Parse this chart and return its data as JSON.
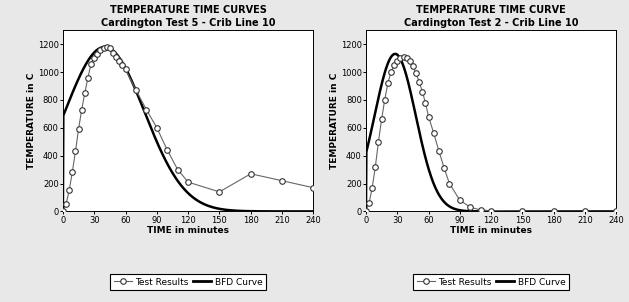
{
  "chart1": {
    "title_line1": "TEMPERATURE TIME CURVES",
    "title_line2": "Cardington Test 5 - Crib Line 10",
    "xlabel": "TIME in minutes",
    "ylabel": "TEMPERATURE in C",
    "xlim": [
      0,
      240
    ],
    "ylim": [
      0,
      1300
    ],
    "xticks": [
      0,
      30,
      60,
      90,
      120,
      150,
      180,
      210,
      240
    ],
    "yticks": [
      0,
      200,
      400,
      600,
      800,
      1000,
      1200
    ],
    "test_x": [
      0,
      3,
      6,
      9,
      12,
      15,
      18,
      21,
      24,
      27,
      30,
      33,
      36,
      39,
      42,
      45,
      48,
      51,
      54,
      57,
      60,
      70,
      80,
      90,
      100,
      110,
      120,
      150,
      180,
      210,
      240
    ],
    "test_y": [
      0,
      50,
      150,
      280,
      430,
      590,
      730,
      850,
      960,
      1060,
      1100,
      1130,
      1160,
      1175,
      1180,
      1170,
      1140,
      1110,
      1080,
      1050,
      1020,
      870,
      730,
      600,
      440,
      300,
      210,
      140,
      270,
      220,
      170
    ],
    "bfd_peak": 1180,
    "bfd_tp": 40,
    "bfd_alpha": 0.55
  },
  "chart2": {
    "title_line1": "TEMPERATURE TIME CURVE",
    "title_line2": "Cardington Test 2 - Crib Line 10",
    "xlabel": "TIME in minutes",
    "ylabel": "TEMPERATURE in C",
    "xlim": [
      0,
      240
    ],
    "ylim": [
      0,
      1300
    ],
    "xticks": [
      0,
      30,
      60,
      90,
      120,
      150,
      180,
      210,
      240
    ],
    "yticks": [
      0,
      200,
      400,
      600,
      800,
      1000,
      1200
    ],
    "test_x": [
      0,
      3,
      6,
      9,
      12,
      15,
      18,
      21,
      24,
      27,
      30,
      33,
      36,
      39,
      42,
      45,
      48,
      51,
      54,
      57,
      60,
      65,
      70,
      75,
      80,
      90,
      100,
      110,
      120,
      150,
      180,
      210,
      240
    ],
    "test_y": [
      0,
      60,
      170,
      320,
      500,
      660,
      800,
      920,
      1000,
      1050,
      1080,
      1100,
      1110,
      1100,
      1080,
      1040,
      990,
      930,
      860,
      780,
      680,
      560,
      430,
      310,
      200,
      80,
      30,
      10,
      5,
      2,
      1,
      0,
      0
    ],
    "bfd_peak": 1130,
    "bfd_tp": 28,
    "bfd_alpha": 1.0
  },
  "bg_color": "#e8e8e8",
  "plot_bg": "#ffffff",
  "line_color_test": "#666666",
  "line_color_bfd": "#000000",
  "marker": "o",
  "marker_size": 4,
  "legend_test": "Test Results",
  "legend_bfd": "BFD Curve",
  "title_fontsize": 7.0,
  "subtitle_fontsize": 6.5,
  "axis_label_fontsize": 6.5,
  "tick_fontsize": 6.0,
  "legend_fontsize": 6.5
}
